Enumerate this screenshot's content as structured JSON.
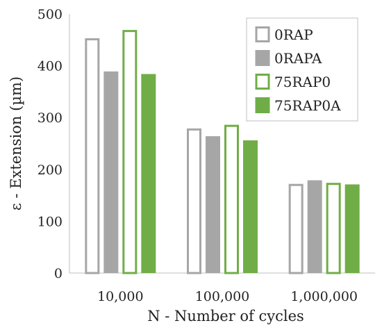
{
  "chart_data": {
    "type": "bar",
    "title": "",
    "xlabel": "N - Number of cycles",
    "ylabel": "ε - Extension (µm)",
    "categories": [
      "10,000",
      "100,000",
      "1,000,000"
    ],
    "ylim": [
      0,
      500
    ],
    "yticks": [
      "0",
      "100",
      "200",
      "300",
      "400",
      "500"
    ],
    "grid": false,
    "legend_position": "top-right",
    "series": [
      {
        "name": "0RAP",
        "values": [
          453,
          279,
          172
        ],
        "color": "#a6a6a6",
        "style": "outline"
      },
      {
        "name": "0RAPA",
        "values": [
          389,
          264,
          179
        ],
        "color": "#a6a6a6",
        "style": "filled"
      },
      {
        "name": "75RAP0",
        "values": [
          469,
          286,
          174
        ],
        "color": "#70ad47",
        "style": "outline"
      },
      {
        "name": "75RAP0A",
        "values": [
          384,
          256,
          171
        ],
        "color": "#70ad47",
        "style": "filled"
      }
    ]
  }
}
